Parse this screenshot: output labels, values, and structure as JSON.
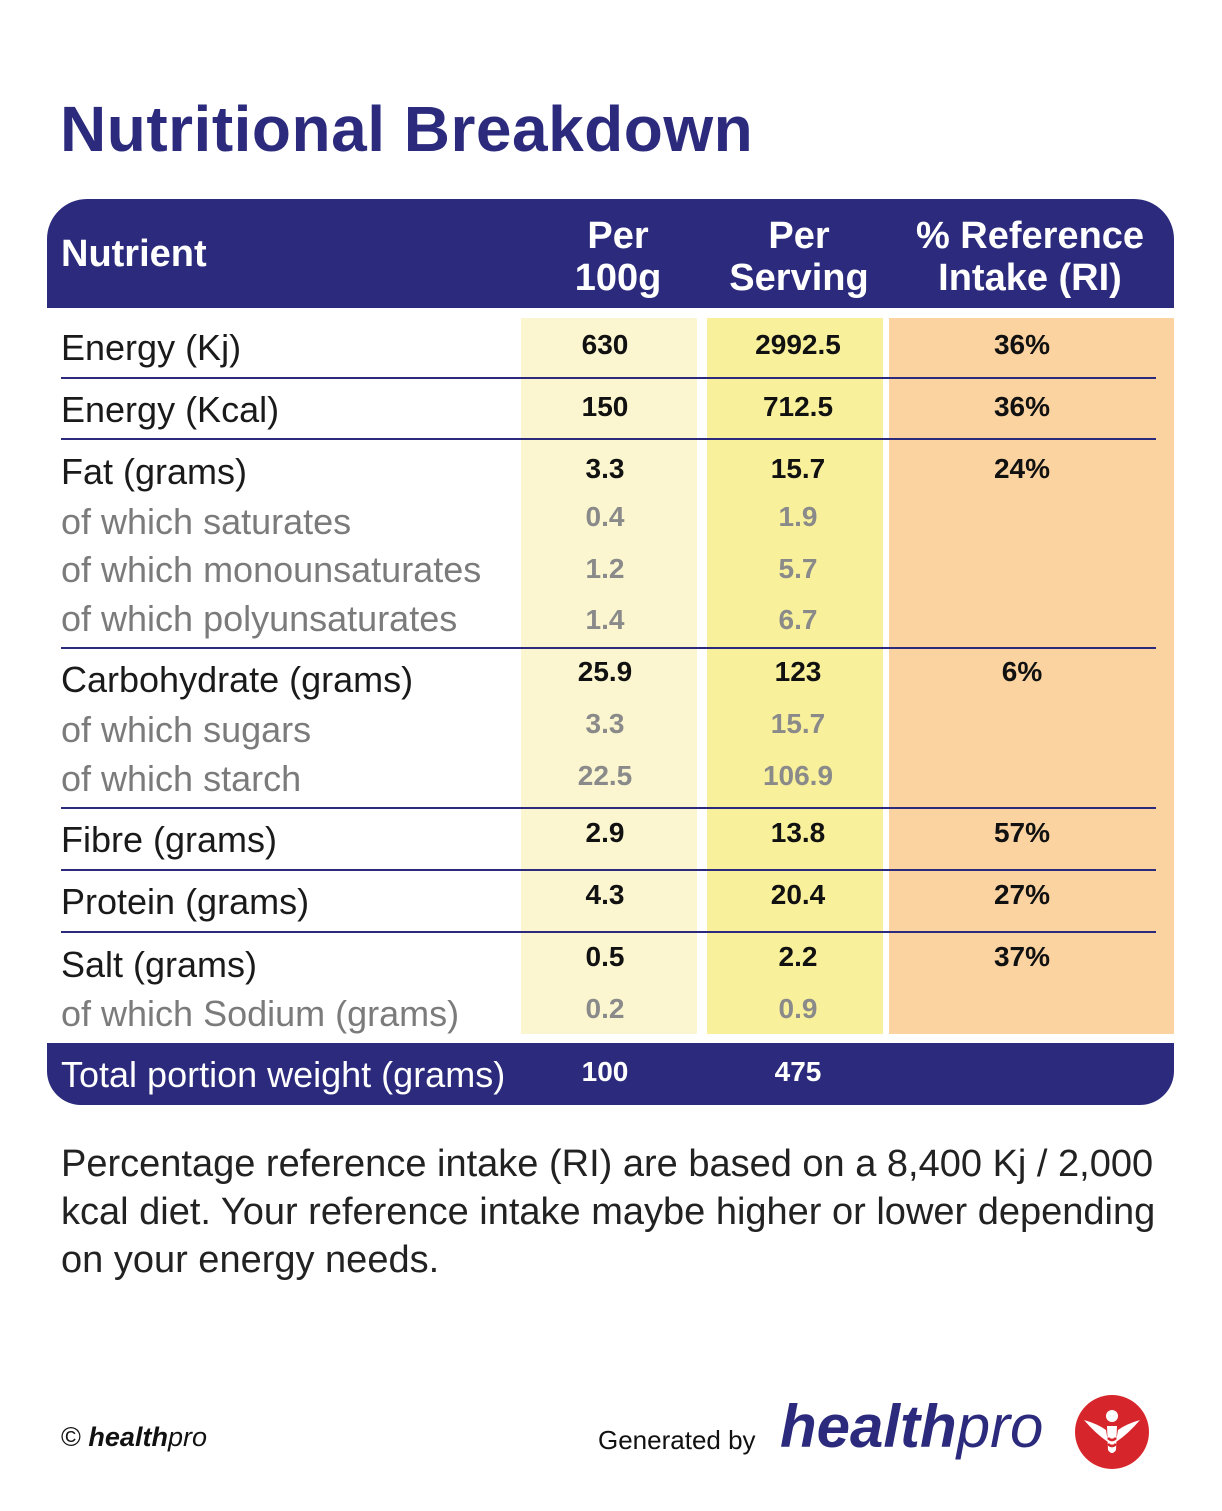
{
  "title": "Nutritional Breakdown",
  "header": {
    "nutrient": "Nutrient",
    "per100_line1": "Per",
    "per100_line2": "100g",
    "perserv_line1": "Per",
    "perserv_line2": "Serving",
    "ri_line1": "% Reference",
    "ri_line2": "Intake (RI)"
  },
  "rows": [
    {
      "label": "Energy (Kj)",
      "per100": "630",
      "perserv": "2992.5",
      "ri": "36%"
    },
    {
      "label": "Energy (Kcal)",
      "per100": "150",
      "perserv": "712.5",
      "ri": "36%"
    },
    {
      "label": "Fat (grams)",
      "per100": "3.3",
      "perserv": "15.7",
      "ri": "24%"
    },
    {
      "label": "of which saturates",
      "per100": "0.4",
      "perserv": "1.9",
      "ri": ""
    },
    {
      "label": "of which monounsaturates",
      "per100": "1.2",
      "perserv": "5.7",
      "ri": ""
    },
    {
      "label": "of which polyunsaturates",
      "per100": "1.4",
      "perserv": "6.7",
      "ri": ""
    },
    {
      "label": "Carbohydrate (grams)",
      "per100": "25.9",
      "perserv": "123",
      "ri": "6%"
    },
    {
      "label": "of which sugars",
      "per100": "3.3",
      "perserv": "15.7",
      "ri": ""
    },
    {
      "label": "of which starch",
      "per100": "22.5",
      "perserv": "106.9",
      "ri": ""
    },
    {
      "label": "Fibre (grams)",
      "per100": "2.9",
      "perserv": "13.8",
      "ri": "57%"
    },
    {
      "label": "Protein (grams)",
      "per100": "4.3",
      "perserv": "20.4",
      "ri": "27%"
    },
    {
      "label": "Salt (grams)",
      "per100": "0.5",
      "perserv": "2.2",
      "ri": "37%"
    },
    {
      "label": "of which Sodium (grams)",
      "per100": "0.2",
      "perserv": "0.9",
      "ri": ""
    }
  ],
  "footer_row": {
    "label": "Total portion weight (grams)",
    "per100": "100",
    "perserv": "475"
  },
  "note": "Percentage reference intake (RI) are based on a 8,400 Kj / 2,000 kcal diet. Your reference intake maybe higher or lower depending on your energy needs.",
  "copyright": {
    "symbol": "©",
    "brand_bold": "health",
    "brand_rest": "pro"
  },
  "generated_by": "Generated by",
  "brand": {
    "bold": "health",
    "rest": "pro"
  },
  "colors": {
    "navy": "#2b2a7c",
    "col_per100": "#fbf6cf",
    "col_perserving": "#f8f09a",
    "col_ri": "#fbd3a0",
    "logo_red": "#d7262b"
  },
  "icons": {
    "logo": "healthpro-figure-logo-icon"
  }
}
